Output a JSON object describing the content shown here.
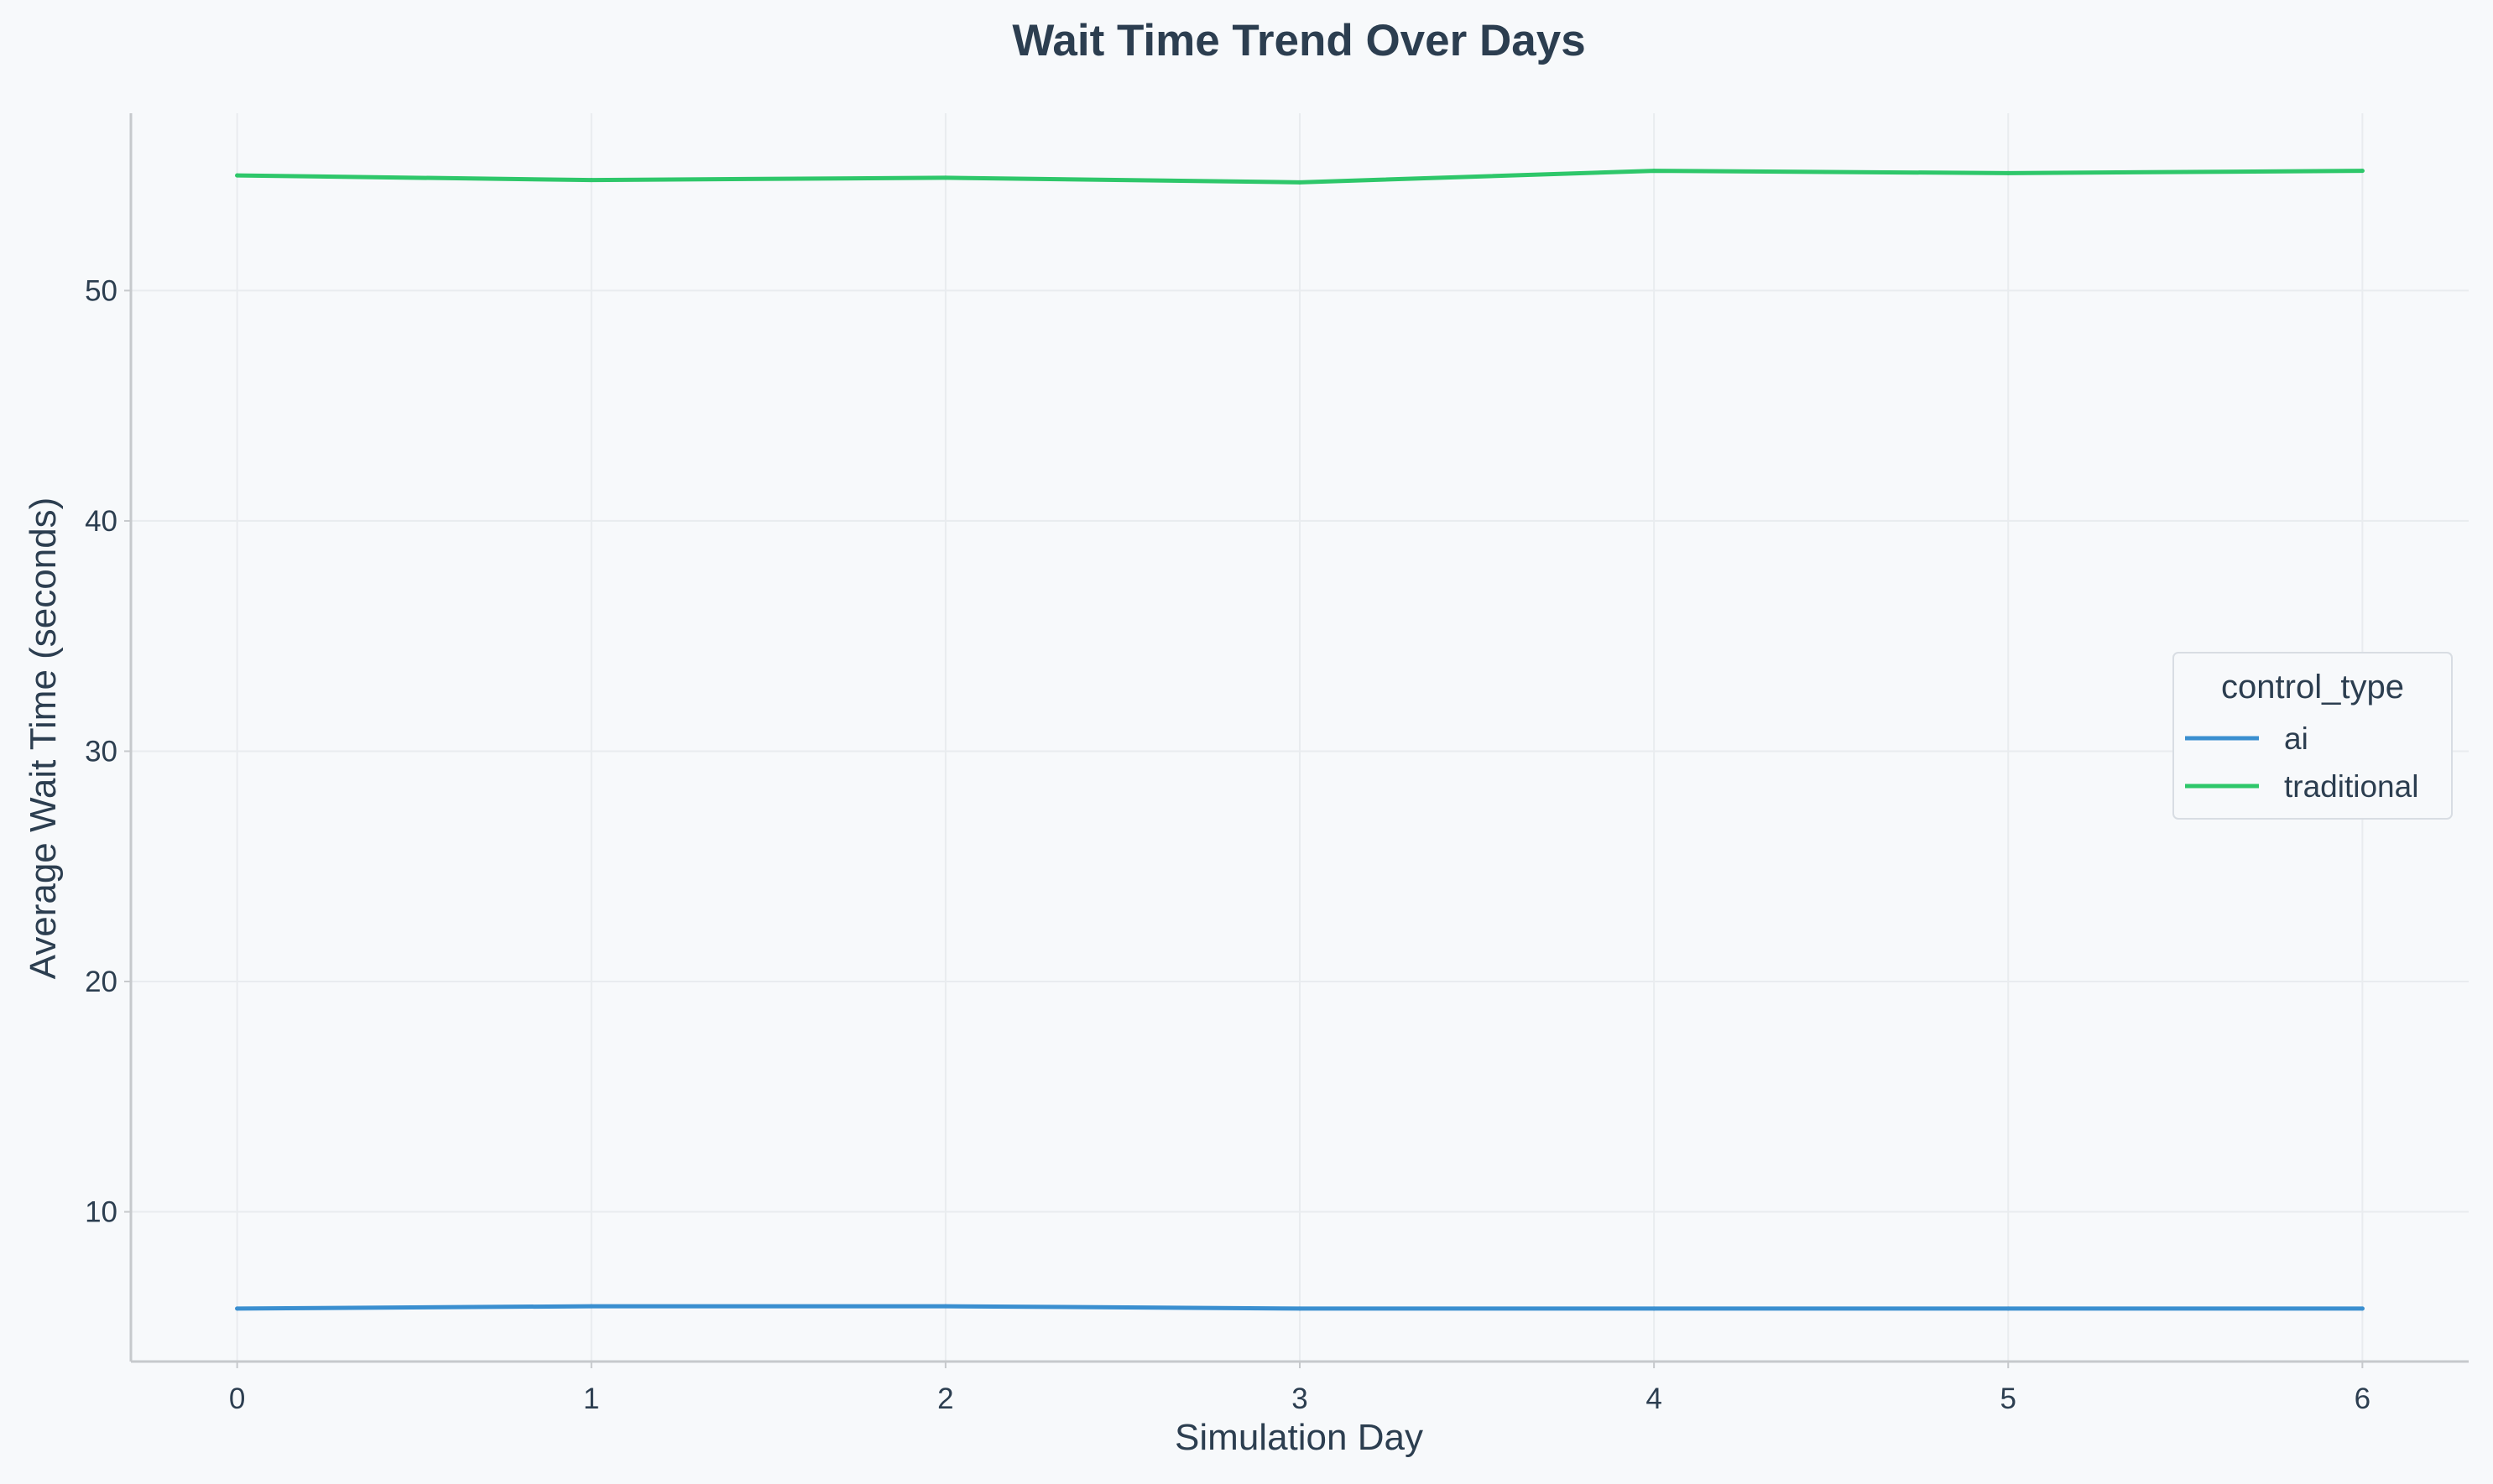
{
  "chart_data": {
    "type": "line",
    "title": "Wait Time Trend Over Days",
    "xlabel": "Simulation Day",
    "ylabel": "Average Wait Time (seconds)",
    "x": [
      0,
      1,
      2,
      3,
      4,
      5,
      6
    ],
    "xlim": [
      -0.3,
      6.3
    ],
    "ylim": [
      3.5,
      57.7
    ],
    "xticks": [
      0,
      1,
      2,
      3,
      4,
      5,
      6
    ],
    "yticks": [
      10,
      20,
      30,
      40,
      50
    ],
    "grid": true,
    "legend": {
      "title": "control_type",
      "placement": "center-right"
    },
    "series": [
      {
        "name": "ai",
        "color": "#3a8fd0",
        "values": [
          5.8,
          5.9,
          5.9,
          5.8,
          5.8,
          5.8,
          5.8
        ]
      },
      {
        "name": "traditional",
        "color": "#2ec76a",
        "values": [
          55.0,
          54.8,
          54.9,
          54.7,
          55.2,
          55.1,
          55.2
        ]
      }
    ]
  }
}
